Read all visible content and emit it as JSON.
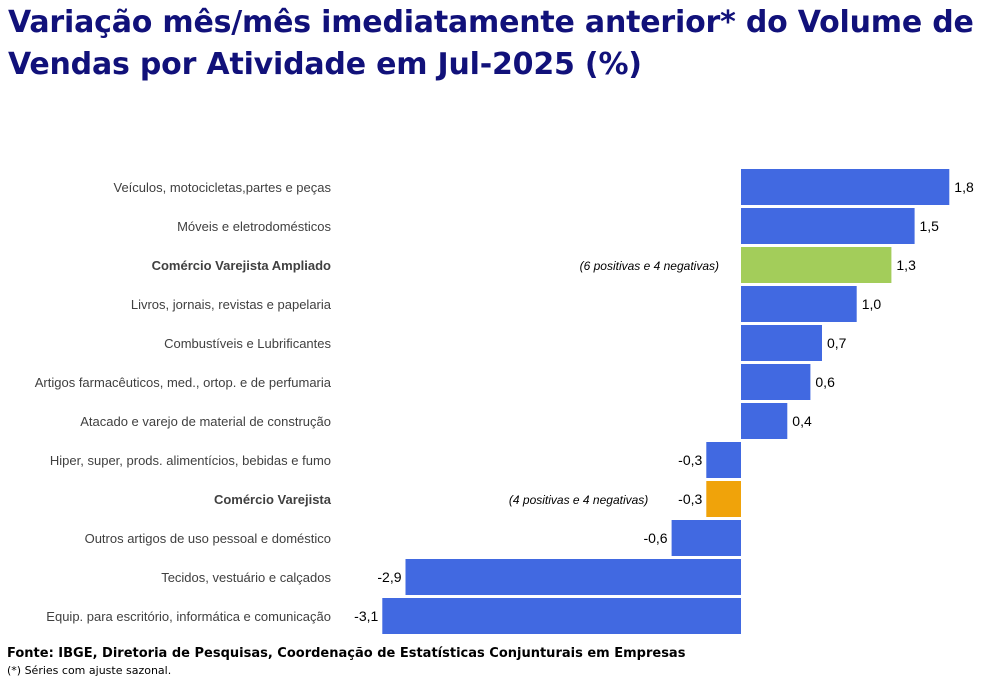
{
  "title": "Variação mês/mês imediatamente anterior* do Volume de Vendas por Atividade em Jul-2025 (%)",
  "source": "Fonte: IBGE, Diretoria de Pesquisas, Coordenação de Estatísticas Conjunturais em Empresas",
  "note": "(*) Séries com ajuste sazonal.",
  "colors": {
    "default_bar": "#4169e1",
    "ampliado_bar": "#a3cd5a",
    "varejista_bar": "#f0a30a",
    "title": "#11117a"
  },
  "chart_data": {
    "type": "bar",
    "orientation": "horizontal",
    "categories": [
      "Veículos, motocicletas,partes e peças",
      "Móveis e eletrodomésticos",
      "Comércio Varejista Ampliado",
      "Livros, jornais, revistas e papelaria",
      "Combustíveis e Lubrificantes",
      "Artigos farmacêuticos, med., ortop. e de perfumaria",
      "Atacado e varejo de material de construção",
      "Hiper, super, prods.  alimentícios, bebidas e fumo",
      "Comércio Varejista",
      "Outros artigos de uso pessoal e doméstico",
      "Tecidos, vestuário e calçados",
      "Equip. para escritório, informática e comunicação"
    ],
    "values": [
      1.8,
      1.5,
      1.3,
      1.0,
      0.7,
      0.6,
      0.4,
      -0.3,
      -0.3,
      -0.6,
      -2.9,
      -3.1
    ],
    "value_labels": [
      "1,8",
      "1,5",
      "1,3",
      "1,0",
      "0,7",
      "0,6",
      "0,4",
      "-0,3",
      "-0,3",
      "-0,6",
      "-2,9",
      "-3,1"
    ],
    "highlight": [
      {
        "category": "Comércio Varejista Ampliado",
        "color": "#a3cd5a",
        "bold": true,
        "annotation": "(6 positivas e 4 negativas)"
      },
      {
        "category": "Comércio Varejista",
        "color": "#f0a30a",
        "bold": true,
        "annotation": "(4 positivas e 4 negativas)"
      }
    ],
    "xlim": [
      -3.1,
      1.8
    ],
    "grid": false,
    "axes_visible": false
  }
}
